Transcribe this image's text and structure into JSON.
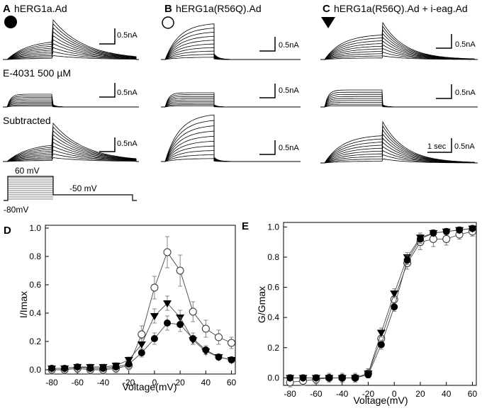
{
  "figure": {
    "panels": [
      {
        "letter": "A",
        "title": "hERG1a.Ad",
        "marker": "filled-circle"
      },
      {
        "letter": "B",
        "title": "hERG1a(R56Q).Ad",
        "marker": "open-circle"
      },
      {
        "letter": "C",
        "title": "hERG1a(R56Q).Ad + i-eag.Ad",
        "marker": "filled-triangle-down"
      }
    ],
    "row_labels": {
      "drug": "E-4031 500 µM",
      "subtracted": "Subtracted"
    },
    "scalebar": {
      "current": "0.5nA",
      "time": "1 sec"
    },
    "protocol": {
      "step": "60 mV",
      "tail": "-50 mV",
      "hold": "-80mV"
    },
    "panel_d_letter": "D",
    "panel_e_letter": "E"
  },
  "chart_data": [
    {
      "type": "scatter",
      "panel": "D",
      "xlabel": "Voltage(mV)",
      "ylabel": "I/Imax",
      "xlim": [
        -85,
        63
      ],
      "ylim": [
        -0.03,
        1.02
      ],
      "xticks": [
        -80,
        -60,
        -40,
        -20,
        0,
        20,
        40,
        60
      ],
      "yticks": [
        0.0,
        0.2,
        0.4,
        0.6,
        0.8,
        1.0
      ],
      "x": [
        -80,
        -70,
        -60,
        -50,
        -40,
        -30,
        -20,
        -10,
        0,
        10,
        20,
        30,
        40,
        50,
        60
      ],
      "series": [
        {
          "marker": "filled-circle",
          "values": [
            0.01,
            0.01,
            0.02,
            0.01,
            0.01,
            0.02,
            0.04,
            0.12,
            0.22,
            0.33,
            0.32,
            0.22,
            0.14,
            0.09,
            0.07
          ],
          "err": [
            0.02,
            0.02,
            0.02,
            0.02,
            0.02,
            0.02,
            0.02,
            0.03,
            0.04,
            0.05,
            0.05,
            0.04,
            0.03,
            0.02,
            0.02
          ]
        },
        {
          "marker": "open-circle",
          "values": [
            0.0,
            0.0,
            0.01,
            0.0,
            0.0,
            0.01,
            0.03,
            0.25,
            0.58,
            0.83,
            0.7,
            0.41,
            0.29,
            0.23,
            0.19
          ],
          "err": [
            0.03,
            0.03,
            0.03,
            0.03,
            0.03,
            0.03,
            0.03,
            0.06,
            0.08,
            0.11,
            0.11,
            0.07,
            0.06,
            0.05,
            0.04
          ]
        },
        {
          "marker": "filled-triangle-down",
          "values": [
            0.01,
            0.01,
            0.02,
            0.02,
            0.02,
            0.03,
            0.07,
            0.18,
            0.38,
            0.47,
            0.37,
            0.21,
            0.13,
            0.09,
            0.07
          ],
          "err": [
            0.02,
            0.02,
            0.02,
            0.02,
            0.02,
            0.02,
            0.02,
            0.04,
            0.05,
            0.05,
            0.05,
            0.03,
            0.02,
            0.02,
            0.02
          ]
        }
      ]
    },
    {
      "type": "scatter",
      "panel": "E",
      "xlabel": "Voltage(mV)",
      "ylabel": "G/Gmax",
      "xlim": [
        -85,
        63
      ],
      "ylim": [
        -0.05,
        1.03
      ],
      "xticks": [
        -80,
        -60,
        -40,
        -20,
        0,
        20,
        40,
        60
      ],
      "yticks": [
        0.0,
        0.2,
        0.4,
        0.6,
        0.8,
        1.0
      ],
      "x": [
        -80,
        -70,
        -60,
        -50,
        -40,
        -30,
        -20,
        -10,
        0,
        10,
        20,
        30,
        40,
        50,
        60
      ],
      "series": [
        {
          "marker": "filled-circle",
          "values": [
            0.0,
            0.0,
            0.0,
            0.0,
            0.0,
            0.0,
            0.02,
            0.22,
            0.47,
            0.78,
            0.92,
            0.96,
            0.97,
            0.98,
            0.99
          ],
          "err": [
            0.02,
            0.02,
            0.02,
            0.02,
            0.02,
            0.02,
            0.02,
            0.03,
            0.03,
            0.03,
            0.03,
            0.02,
            0.02,
            0.02,
            0.02
          ]
        },
        {
          "marker": "open-circle",
          "values": [
            -0.03,
            -0.02,
            -0.01,
            0.0,
            0.0,
            0.0,
            0.03,
            0.26,
            0.52,
            0.76,
            0.9,
            0.92,
            0.92,
            0.95,
            0.97
          ],
          "err": [
            0.03,
            0.03,
            0.03,
            0.03,
            0.03,
            0.03,
            0.03,
            0.04,
            0.04,
            0.04,
            0.05,
            0.05,
            0.04,
            0.03,
            0.03
          ]
        },
        {
          "marker": "filled-triangle-down",
          "values": [
            0.0,
            0.0,
            0.0,
            0.0,
            0.0,
            0.0,
            0.03,
            0.3,
            0.56,
            0.8,
            0.93,
            0.96,
            0.97,
            0.98,
            0.99
          ],
          "err": [
            0.02,
            0.02,
            0.02,
            0.02,
            0.02,
            0.02,
            0.02,
            0.03,
            0.03,
            0.03,
            0.03,
            0.02,
            0.02,
            0.02,
            0.02
          ]
        }
      ]
    }
  ]
}
